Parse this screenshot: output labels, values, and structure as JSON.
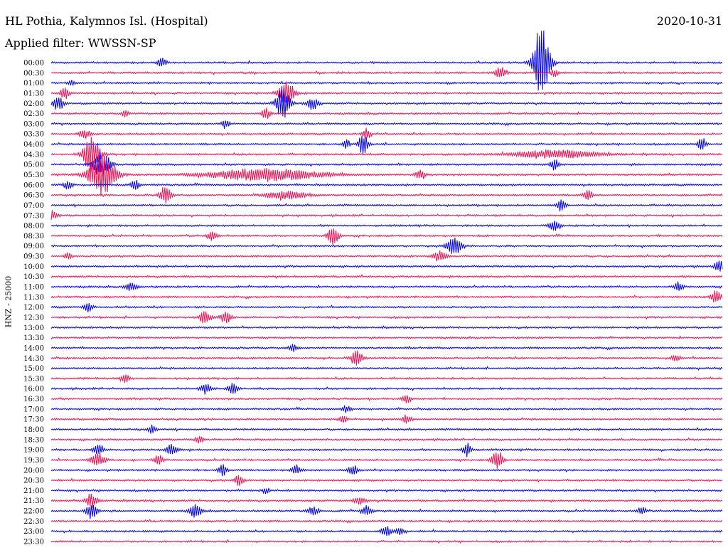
{
  "header": {
    "station": "HL Pothia, Kalymnos Isl. (Hospital)",
    "date": "2020-10-31",
    "filter": "Applied filter: WWSSN-SP"
  },
  "chart_data": {
    "type": "line",
    "subtype": "helicorder",
    "ylabel": "HNZ - 25000",
    "row_labels": [
      "00:00",
      "00:30",
      "01:00",
      "01:30",
      "02:00",
      "02:30",
      "03:00",
      "03:30",
      "04:00",
      "04:30",
      "05:00",
      "05:30",
      "06:00",
      "06:30",
      "07:00",
      "07:30",
      "08:00",
      "08:30",
      "09:00",
      "09:30",
      "10:00",
      "10:30",
      "11:00",
      "11:30",
      "12:00",
      "12:30",
      "13:00",
      "13:30",
      "14:00",
      "14:30",
      "15:00",
      "15:30",
      "16:00",
      "16:30",
      "17:00",
      "17:30",
      "18:00",
      "18:30",
      "19:00",
      "19:30",
      "20:00",
      "20:30",
      "21:00",
      "21:30",
      "22:00",
      "22:30",
      "23:00",
      "23:30"
    ],
    "trace_colors": [
      "#0000ee",
      "#ee1155"
    ],
    "events": [
      {
        "row": 0,
        "x": 0.73,
        "amp": 6.0,
        "w": 0.012
      },
      {
        "row": 0,
        "x": 0.165,
        "amp": 0.8,
        "w": 0.006
      },
      {
        "row": 1,
        "x": 0.67,
        "amp": 1.0,
        "w": 0.008
      },
      {
        "row": 1,
        "x": 0.75,
        "amp": 0.6,
        "w": 0.006
      },
      {
        "row": 2,
        "x": 0.03,
        "amp": 0.6,
        "w": 0.005
      },
      {
        "row": 3,
        "x": 0.35,
        "amp": 2.0,
        "w": 0.012
      },
      {
        "row": 3,
        "x": 0.02,
        "amp": 1.0,
        "w": 0.006
      },
      {
        "row": 4,
        "x": 0.345,
        "amp": 2.6,
        "w": 0.01
      },
      {
        "row": 4,
        "x": 0.01,
        "amp": 1.2,
        "w": 0.008
      },
      {
        "row": 4,
        "x": 0.39,
        "amp": 1.0,
        "w": 0.008
      },
      {
        "row": 5,
        "x": 0.32,
        "amp": 1.0,
        "w": 0.006
      },
      {
        "row": 5,
        "x": 0.11,
        "amp": 0.6,
        "w": 0.005
      },
      {
        "row": 6,
        "x": 0.26,
        "amp": 0.8,
        "w": 0.005
      },
      {
        "row": 7,
        "x": 0.47,
        "amp": 1.0,
        "w": 0.006
      },
      {
        "row": 7,
        "x": 0.05,
        "amp": 0.7,
        "w": 0.008
      },
      {
        "row": 8,
        "x": 0.465,
        "amp": 1.6,
        "w": 0.007
      },
      {
        "row": 8,
        "x": 0.44,
        "amp": 0.8,
        "w": 0.005
      },
      {
        "row": 8,
        "x": 0.97,
        "amp": 1.2,
        "w": 0.006
      },
      {
        "row": 9,
        "x": 0.06,
        "amp": 3.0,
        "w": 0.012
      },
      {
        "row": 9,
        "x": 0.75,
        "amp": 0.7,
        "w": 0.06
      },
      {
        "row": 10,
        "x": 0.075,
        "amp": 2.2,
        "w": 0.012
      },
      {
        "row": 10,
        "x": 0.75,
        "amp": 1.0,
        "w": 0.006
      },
      {
        "row": 11,
        "x": 0.075,
        "amp": 3.4,
        "w": 0.02
      },
      {
        "row": 11,
        "x": 0.32,
        "amp": 1.0,
        "w": 0.08
      },
      {
        "row": 11,
        "x": 0.55,
        "amp": 0.8,
        "w": 0.007
      },
      {
        "row": 12,
        "x": 0.025,
        "amp": 0.8,
        "w": 0.006
      },
      {
        "row": 12,
        "x": 0.125,
        "amp": 1.0,
        "w": 0.006
      },
      {
        "row": 13,
        "x": 0.17,
        "amp": 1.6,
        "w": 0.008
      },
      {
        "row": 13,
        "x": 0.35,
        "amp": 0.7,
        "w": 0.03
      },
      {
        "row": 13,
        "x": 0.8,
        "amp": 0.8,
        "w": 0.006
      },
      {
        "row": 14,
        "x": 0.76,
        "amp": 1.0,
        "w": 0.006
      },
      {
        "row": 15,
        "x": 0.0,
        "amp": 0.8,
        "w": 0.008
      },
      {
        "row": 16,
        "x": 0.75,
        "amp": 0.8,
        "w": 0.008
      },
      {
        "row": 17,
        "x": 0.42,
        "amp": 1.6,
        "w": 0.008
      },
      {
        "row": 17,
        "x": 0.24,
        "amp": 0.8,
        "w": 0.007
      },
      {
        "row": 18,
        "x": 0.6,
        "amp": 1.8,
        "w": 0.01
      },
      {
        "row": 19,
        "x": 0.58,
        "amp": 0.9,
        "w": 0.01
      },
      {
        "row": 19,
        "x": 0.025,
        "amp": 0.6,
        "w": 0.005
      },
      {
        "row": 20,
        "x": 0.995,
        "amp": 1.0,
        "w": 0.006
      },
      {
        "row": 22,
        "x": 0.12,
        "amp": 0.9,
        "w": 0.008
      },
      {
        "row": 22,
        "x": 0.935,
        "amp": 0.9,
        "w": 0.006
      },
      {
        "row": 23,
        "x": 0.99,
        "amp": 1.0,
        "w": 0.008
      },
      {
        "row": 24,
        "x": 0.055,
        "amp": 0.8,
        "w": 0.006
      },
      {
        "row": 25,
        "x": 0.23,
        "amp": 1.2,
        "w": 0.008
      },
      {
        "row": 25,
        "x": 0.26,
        "amp": 1.0,
        "w": 0.008
      },
      {
        "row": 28,
        "x": 0.36,
        "amp": 0.6,
        "w": 0.006
      },
      {
        "row": 29,
        "x": 0.455,
        "amp": 1.4,
        "w": 0.008
      },
      {
        "row": 29,
        "x": 0.93,
        "amp": 0.6,
        "w": 0.006
      },
      {
        "row": 31,
        "x": 0.11,
        "amp": 0.8,
        "w": 0.006
      },
      {
        "row": 32,
        "x": 0.23,
        "amp": 0.9,
        "w": 0.007
      },
      {
        "row": 32,
        "x": 0.27,
        "amp": 0.9,
        "w": 0.007
      },
      {
        "row": 33,
        "x": 0.53,
        "amp": 0.7,
        "w": 0.006
      },
      {
        "row": 34,
        "x": 0.44,
        "amp": 0.6,
        "w": 0.006
      },
      {
        "row": 35,
        "x": 0.435,
        "amp": 0.7,
        "w": 0.006
      },
      {
        "row": 35,
        "x": 0.53,
        "amp": 0.8,
        "w": 0.006
      },
      {
        "row": 36,
        "x": 0.15,
        "amp": 0.6,
        "w": 0.006
      },
      {
        "row": 37,
        "x": 0.22,
        "amp": 0.6,
        "w": 0.006
      },
      {
        "row": 38,
        "x": 0.07,
        "amp": 0.8,
        "w": 0.008
      },
      {
        "row": 38,
        "x": 0.18,
        "amp": 0.9,
        "w": 0.008
      },
      {
        "row": 38,
        "x": 0.62,
        "amp": 1.2,
        "w": 0.006
      },
      {
        "row": 39,
        "x": 0.07,
        "amp": 1.1,
        "w": 0.01
      },
      {
        "row": 39,
        "x": 0.16,
        "amp": 0.8,
        "w": 0.007
      },
      {
        "row": 39,
        "x": 0.665,
        "amp": 1.6,
        "w": 0.008
      },
      {
        "row": 40,
        "x": 0.255,
        "amp": 1.0,
        "w": 0.006
      },
      {
        "row": 40,
        "x": 0.365,
        "amp": 0.8,
        "w": 0.006
      },
      {
        "row": 40,
        "x": 0.45,
        "amp": 1.0,
        "w": 0.007
      },
      {
        "row": 41,
        "x": 0.28,
        "amp": 1.0,
        "w": 0.006
      },
      {
        "row": 42,
        "x": 0.32,
        "amp": 0.5,
        "w": 0.005
      },
      {
        "row": 43,
        "x": 0.06,
        "amp": 1.2,
        "w": 0.008
      },
      {
        "row": 43,
        "x": 0.46,
        "amp": 0.7,
        "w": 0.008
      },
      {
        "row": 44,
        "x": 0.06,
        "amp": 1.4,
        "w": 0.008
      },
      {
        "row": 44,
        "x": 0.215,
        "amp": 1.2,
        "w": 0.008
      },
      {
        "row": 44,
        "x": 0.39,
        "amp": 0.8,
        "w": 0.008
      },
      {
        "row": 44,
        "x": 0.47,
        "amp": 0.8,
        "w": 0.008
      },
      {
        "row": 44,
        "x": 0.88,
        "amp": 0.7,
        "w": 0.006
      },
      {
        "row": 46,
        "x": 0.5,
        "amp": 0.8,
        "w": 0.008
      },
      {
        "row": 46,
        "x": 0.52,
        "amp": 0.7,
        "w": 0.006
      }
    ]
  }
}
